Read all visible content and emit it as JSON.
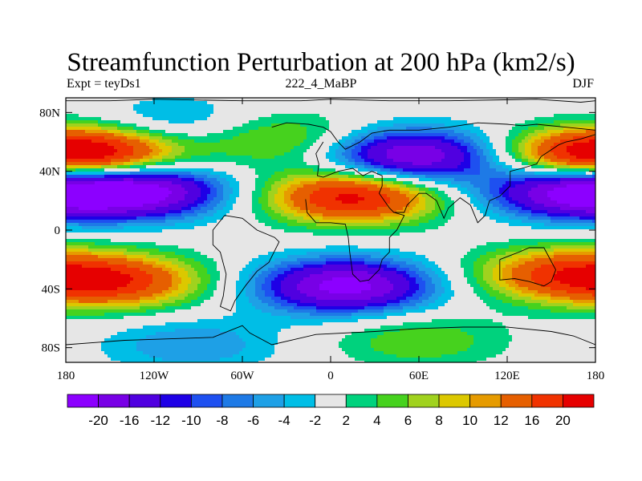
{
  "header": {
    "title": "Streamfunction Perturbation at 200 hPa (km2/s)",
    "left": "Expt = teyDs1",
    "center": "222_4_MaBP",
    "right": "DJF"
  },
  "chart_data": {
    "type": "heatmap",
    "title": "Streamfunction Perturbation at 200 hPa (km2/s)",
    "xlim": [
      -180,
      180
    ],
    "ylim": [
      -90,
      90
    ],
    "x_ticks": [
      {
        "value": -180,
        "label": "180"
      },
      {
        "value": -120,
        "label": "120W"
      },
      {
        "value": -60,
        "label": "60W"
      },
      {
        "value": 0,
        "label": "0"
      },
      {
        "value": 60,
        "label": "60E"
      },
      {
        "value": 120,
        "label": "120E"
      },
      {
        "value": 180,
        "label": "180"
      }
    ],
    "y_ticks": [
      {
        "value": 80,
        "label": "80N"
      },
      {
        "value": 40,
        "label": "40N"
      },
      {
        "value": 0,
        "label": "0"
      },
      {
        "value": -40,
        "label": "40S"
      },
      {
        "value": -80,
        "label": "80S"
      }
    ],
    "colorbar": {
      "levels": [
        -20,
        -16,
        -12,
        -10,
        -8,
        -6,
        -4,
        -2,
        2,
        4,
        6,
        8,
        10,
        12,
        16,
        20
      ],
      "labels": [
        "-20",
        "-16",
        "-12",
        "-10",
        "-8",
        "-6",
        "-4",
        "-2",
        "2",
        "4",
        "6",
        "8",
        "10",
        "12",
        "16",
        "20"
      ],
      "colors": [
        "#8c00ff",
        "#7800e6",
        "#5000e0",
        "#1e00e6",
        "#1e50f0",
        "#1e7ae6",
        "#1ea0e6",
        "#00bee6",
        "#e6e6e6",
        "#00d27d",
        "#46d21e",
        "#a0d21e",
        "#dcc800",
        "#e69b00",
        "#e65f00",
        "#f03200",
        "#e60000"
      ]
    },
    "field_features": [
      {
        "lon": -130,
        "lat": 27,
        "value": -22
      },
      {
        "lon": 165,
        "lat": 27,
        "value": -22
      },
      {
        "lon": 55,
        "lat": 50,
        "value": -21
      },
      {
        "lon": 10,
        "lat": -38,
        "value": -22
      },
      {
        "lon": 15,
        "lat": 23,
        "value": 22
      },
      {
        "lon": -155,
        "lat": 52,
        "value": 17
      },
      {
        "lon": 170,
        "lat": 50,
        "value": 16
      },
      {
        "lon": -145,
        "lat": -35,
        "value": 17
      },
      {
        "lon": 155,
        "lat": -30,
        "value": 15
      },
      {
        "lon": -105,
        "lat": 72,
        "value": -6
      },
      {
        "lon": -35,
        "lat": 62,
        "value": 8
      },
      {
        "lon": 60,
        "lat": -75,
        "value": 6
      },
      {
        "lon": -95,
        "lat": -78,
        "value": -6
      }
    ]
  }
}
